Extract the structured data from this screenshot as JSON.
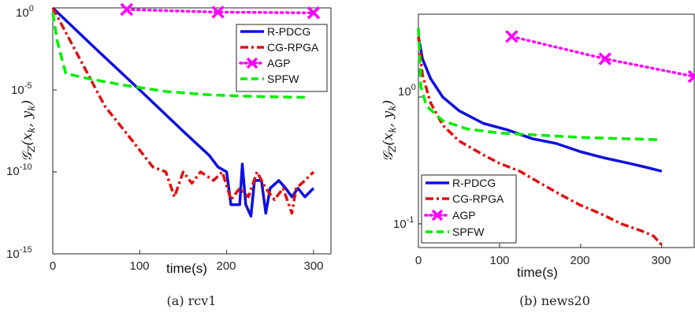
{
  "chart_data": [
    {
      "type": "line",
      "caption": "(a)  rcv1",
      "xlabel": "time(s)",
      "ylabel": "G_Z(x_k, y_k)",
      "ylabel_parts": {
        "main": "𝒢",
        "sub": "Z",
        "args": "(x",
        "k1": "k",
        "mid": ", y",
        "k2": "k",
        "end": ")"
      },
      "yscale": "log",
      "xlim": [
        0,
        320
      ],
      "ylim": [
        1e-15,
        1
      ],
      "xticks": [
        0,
        100,
        200,
        300
      ],
      "xtick_labels": [
        "0",
        "100",
        "200",
        "300"
      ],
      "yticks": [
        1e-15,
        1e-10,
        1e-05,
        1
      ],
      "ytick_labels": [
        {
          "base": "10",
          "exp": "-15"
        },
        {
          "base": "10",
          "exp": "-10"
        },
        {
          "base": "10",
          "exp": "-5"
        },
        {
          "base": "10",
          "exp": "0"
        }
      ],
      "grid": false,
      "legend_position": "top-right",
      "series": [
        {
          "name": "R-PDCG",
          "color": "#1010e0",
          "style": "solid",
          "points": [
            [
              0,
              1
            ],
            [
              50,
              0.003
            ],
            [
              100,
              1e-05
            ],
            [
              150,
              3e-08
            ],
            [
              180,
              1e-09
            ],
            [
              190,
              2e-10
            ],
            [
              200,
              1e-10
            ],
            [
              205,
              1e-12
            ],
            [
              215,
              1e-12
            ],
            [
              218,
              3e-10
            ],
            [
              222,
              1e-12
            ],
            [
              228,
              2e-13
            ],
            [
              232,
              3e-11
            ],
            [
              240,
              3e-11
            ],
            [
              245,
              3e-13
            ],
            [
              250,
              1e-11
            ],
            [
              260,
              3e-11
            ],
            [
              268,
              1e-11
            ],
            [
              275,
              3e-12
            ],
            [
              282,
              1e-11
            ],
            [
              290,
              3e-12
            ],
            [
              300,
              1e-11
            ]
          ]
        },
        {
          "name": "CG-RPGA",
          "color": "#e01010",
          "style": "dashdot",
          "points": [
            [
              0,
              1
            ],
            [
              30,
              0.001
            ],
            [
              60,
              1e-06
            ],
            [
              90,
              1e-08
            ],
            [
              115,
              2e-10
            ],
            [
              130,
              1e-10
            ],
            [
              140,
              3e-12
            ],
            [
              150,
              1e-10
            ],
            [
              160,
              2e-11
            ],
            [
              170,
              1e-10
            ],
            [
              185,
              3e-11
            ],
            [
              195,
              1e-10
            ],
            [
              205,
              2e-12
            ],
            [
              215,
              1e-11
            ],
            [
              225,
              3e-12
            ],
            [
              235,
              1e-10
            ],
            [
              245,
              1e-11
            ],
            [
              255,
              2e-12
            ],
            [
              265,
              1e-11
            ],
            [
              275,
              3e-13
            ],
            [
              280,
              1e-11
            ],
            [
              290,
              3e-11
            ],
            [
              300,
              1e-10
            ]
          ]
        },
        {
          "name": "AGP",
          "color": "#ff00ff",
          "style": "dotted",
          "marker": "x",
          "points": [
            [
              85,
              0.8
            ],
            [
              190,
              0.55
            ],
            [
              300,
              0.5
            ]
          ]
        },
        {
          "name": "SPFW",
          "color": "#00ee00",
          "style": "dashed",
          "points": [
            [
              0,
              0.5
            ],
            [
              5,
              0.01
            ],
            [
              15,
              0.0001
            ],
            [
              40,
              5e-05
            ],
            [
              80,
              2e-05
            ],
            [
              130,
              8e-06
            ],
            [
              180,
              5e-06
            ],
            [
              230,
              4e-06
            ],
            [
              290,
              3.5e-06
            ]
          ]
        }
      ]
    },
    {
      "type": "line",
      "caption": "(b)  news20",
      "xlabel": "time(s)",
      "ylabel": "G_Z(x_k, y_k)",
      "ylabel_parts": {
        "main": "𝒢",
        "sub": "Z",
        "args": "(x",
        "k1": "k",
        "mid": ", y",
        "k2": "k",
        "end": ")"
      },
      "yscale": "log",
      "xlim": [
        0,
        340
      ],
      "ylim": [
        0.065,
        4.5
      ],
      "xticks": [
        0,
        100,
        200,
        300
      ],
      "xtick_labels": [
        "0",
        "100",
        "200",
        "300"
      ],
      "yticks": [
        0.1,
        1
      ],
      "ytick_labels": [
        {
          "base": "10",
          "exp": "-1"
        },
        {
          "base": "10",
          "exp": "0"
        }
      ],
      "grid": false,
      "legend_position": "bottom-left",
      "series": [
        {
          "name": "R-PDCG",
          "color": "#1010e0",
          "style": "solid",
          "points": [
            [
              0,
              3.0
            ],
            [
              5,
              2.0
            ],
            [
              15,
              1.4
            ],
            [
              30,
              1.0
            ],
            [
              50,
              0.78
            ],
            [
              80,
              0.62
            ],
            [
              110,
              0.55
            ],
            [
              140,
              0.47
            ],
            [
              170,
              0.43
            ],
            [
              200,
              0.37
            ],
            [
              230,
              0.33
            ],
            [
              260,
              0.3
            ],
            [
              280,
              0.28
            ],
            [
              300,
              0.26
            ]
          ]
        },
        {
          "name": "CG-RPGA",
          "color": "#e01010",
          "style": "dashdot",
          "points": [
            [
              0,
              3.0
            ],
            [
              5,
              1.5
            ],
            [
              15,
              0.9
            ],
            [
              30,
              0.6
            ],
            [
              50,
              0.45
            ],
            [
              80,
              0.35
            ],
            [
              100,
              0.3
            ],
            [
              125,
              0.26
            ],
            [
              150,
              0.21
            ],
            [
              175,
              0.17
            ],
            [
              200,
              0.14
            ],
            [
              225,
              0.12
            ],
            [
              250,
              0.1
            ],
            [
              275,
              0.088
            ],
            [
              290,
              0.08
            ],
            [
              300,
              0.068
            ]
          ]
        },
        {
          "name": "AGP",
          "color": "#ff00ff",
          "style": "dotted",
          "marker": "x",
          "points": [
            [
              115,
              3.0
            ],
            [
              230,
              2.0
            ],
            [
              340,
              1.45
            ]
          ]
        },
        {
          "name": "SPFW",
          "color": "#00ee00",
          "style": "dashed",
          "points": [
            [
              0,
              3.5
            ],
            [
              3,
              1.2
            ],
            [
              10,
              0.85
            ],
            [
              30,
              0.65
            ],
            [
              60,
              0.56
            ],
            [
              100,
              0.52
            ],
            [
              150,
              0.5
            ],
            [
              200,
              0.48
            ],
            [
              250,
              0.47
            ],
            [
              300,
              0.46
            ]
          ]
        }
      ]
    }
  ]
}
